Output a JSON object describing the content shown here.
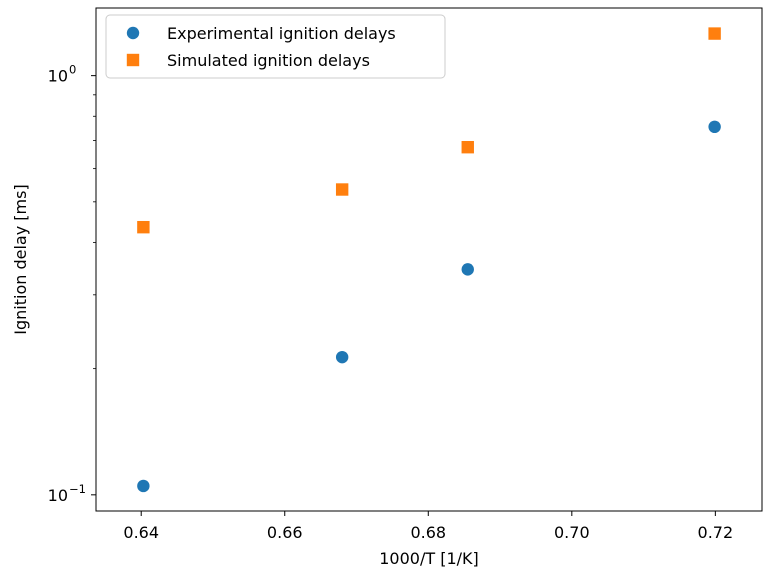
{
  "chart_data": {
    "type": "scatter",
    "xlabel": "1000/T [1/K]",
    "ylabel": "Ignition delay [ms]",
    "yscale": "log",
    "xlim": [
      0.6337,
      0.7265
    ],
    "ylim": [
      0.0915,
      1.45
    ],
    "xticks": [
      {
        "value": 0.64,
        "label": "0.64"
      },
      {
        "value": 0.66,
        "label": "0.66"
      },
      {
        "value": 0.68,
        "label": "0.68"
      },
      {
        "value": 0.7,
        "label": "0.70"
      },
      {
        "value": 0.72,
        "label": "0.72"
      }
    ],
    "yticks": [
      {
        "value": 0.1,
        "base": "10",
        "exp": "−1"
      },
      {
        "value": 1.0,
        "base": "10",
        "exp": "0"
      }
    ],
    "legend": "upper-left",
    "grid": false,
    "series": [
      {
        "name": "Experimental ignition delays",
        "marker": "circle",
        "color": "#1f77b4",
        "x": [
          0.6403,
          0.668,
          0.6855,
          0.7199
        ],
        "y": [
          0.105,
          0.213,
          0.345,
          0.755
        ]
      },
      {
        "name": "Simulated ignition delays",
        "marker": "square",
        "color": "#ff7f0e",
        "x": [
          0.6403,
          0.668,
          0.6855,
          0.7199
        ],
        "y": [
          0.435,
          0.535,
          0.675,
          1.26
        ]
      }
    ]
  }
}
